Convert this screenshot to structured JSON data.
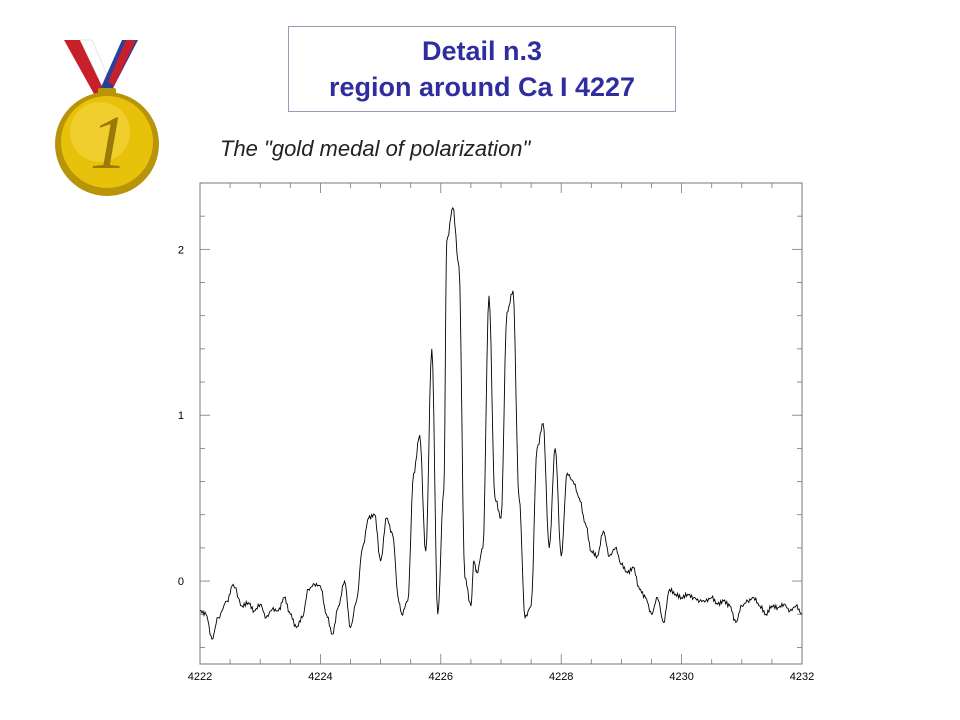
{
  "header": {
    "title_line1": "Detail n.3",
    "title_line2": "region around Ca I 4227",
    "subtitle": "The \"gold medal of polarization\"",
    "title_color": "#2e2e9e"
  },
  "medal": {
    "icon": "gold-medal-icon",
    "number": "1",
    "gold": "#e8c20a",
    "ribbon_colors": [
      "#c8202a",
      "#ffffff",
      "#2a3e9e"
    ]
  },
  "chart_data": {
    "type": "line",
    "title": "",
    "xlabel": "",
    "ylabel": "",
    "xlim": [
      4222,
      4232
    ],
    "ylim": [
      -0.5,
      2.4
    ],
    "xticks": [
      4222,
      4224,
      4226,
      4228,
      4230,
      4232
    ],
    "yticks": [
      0,
      1,
      2
    ],
    "grid": false,
    "series": [
      {
        "color": "#000000",
        "x": [
          4222.0,
          4222.1,
          4222.2,
          4222.3,
          4222.45,
          4222.55,
          4222.7,
          4222.8,
          4222.9,
          4223.0,
          4223.1,
          4223.2,
          4223.3,
          4223.4,
          4223.5,
          4223.6,
          4223.7,
          4223.8,
          4223.9,
          4224.0,
          4224.1,
          4224.2,
          4224.3,
          4224.4,
          4224.5,
          4224.6,
          4224.7,
          4224.8,
          4224.9,
          4225.0,
          4225.1,
          4225.2,
          4225.3,
          4225.35,
          4225.45,
          4225.55,
          4225.65,
          4225.75,
          4225.85,
          4225.95,
          4226.05,
          4226.1,
          4226.2,
          4226.3,
          4226.4,
          4226.5,
          4226.55,
          4226.6,
          4226.7,
          4226.8,
          4226.9,
          4227.0,
          4227.1,
          4227.2,
          4227.3,
          4227.4,
          4227.5,
          4227.6,
          4227.7,
          4227.8,
          4227.9,
          4228.0,
          4228.1,
          4228.2,
          4228.3,
          4228.4,
          4228.5,
          4228.6,
          4228.7,
          4228.8,
          4228.9,
          4229.0,
          4229.1,
          4229.2,
          4229.3,
          4229.4,
          4229.5,
          4229.6,
          4229.7,
          4229.8,
          4229.9,
          4230.0,
          4230.1,
          4230.2,
          4230.3,
          4230.4,
          4230.5,
          4230.6,
          4230.7,
          4230.8,
          4230.9,
          4231.0,
          4231.1,
          4231.2,
          4231.3,
          4231.4,
          4231.5,
          4231.6,
          4231.7,
          4231.8,
          4231.9,
          4232.0
        ],
        "y": [
          -0.18,
          -0.2,
          -0.35,
          -0.22,
          -0.12,
          -0.02,
          -0.15,
          -0.13,
          -0.18,
          -0.14,
          -0.22,
          -0.17,
          -0.18,
          -0.1,
          -0.2,
          -0.28,
          -0.22,
          -0.05,
          -0.02,
          -0.03,
          -0.2,
          -0.32,
          -0.15,
          0.0,
          -0.28,
          -0.12,
          0.2,
          0.38,
          0.4,
          0.12,
          0.38,
          0.28,
          -0.12,
          -0.2,
          -0.12,
          0.65,
          0.88,
          0.18,
          1.4,
          -0.2,
          0.55,
          2.05,
          2.25,
          1.9,
          0.02,
          -0.15,
          0.12,
          0.05,
          0.2,
          1.72,
          0.5,
          0.38,
          1.62,
          1.75,
          0.5,
          -0.22,
          -0.15,
          0.8,
          0.95,
          0.2,
          0.8,
          0.15,
          0.65,
          0.6,
          0.5,
          0.35,
          0.18,
          0.15,
          0.3,
          0.15,
          0.2,
          0.1,
          0.05,
          0.08,
          -0.05,
          -0.1,
          -0.2,
          -0.1,
          -0.25,
          -0.05,
          -0.08,
          -0.1,
          -0.08,
          -0.1,
          -0.12,
          -0.12,
          -0.1,
          -0.14,
          -0.12,
          -0.15,
          -0.25,
          -0.15,
          -0.12,
          -0.1,
          -0.15,
          -0.2,
          -0.15,
          -0.16,
          -0.14,
          -0.18,
          -0.15,
          -0.2
        ]
      }
    ]
  }
}
